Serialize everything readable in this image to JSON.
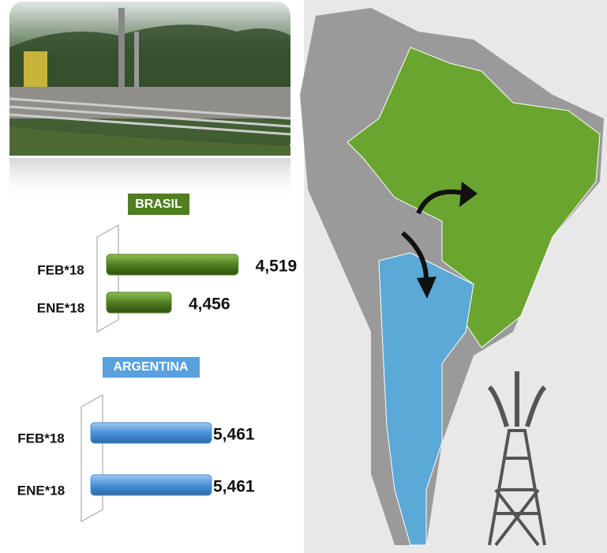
{
  "chart_data": [
    {
      "type": "bar",
      "orientation": "horizontal",
      "title": "BRASIL",
      "color": "#4f7f1f",
      "categories": [
        "FEB*18",
        "ENE*18"
      ],
      "values": [
        4519,
        4456
      ],
      "value_labels": [
        "4,519",
        "4,456"
      ],
      "xlim": [
        4395,
        4520
      ]
    },
    {
      "type": "bar",
      "orientation": "horizontal",
      "title": "ARGENTINA",
      "color": "#4a92d8",
      "categories": [
        "FEB*18",
        "ENE*18"
      ],
      "values": [
        5461,
        5461
      ],
      "value_labels": [
        "5,461",
        "5,461"
      ],
      "xlim": [
        0,
        5461
      ]
    }
  ]
}
